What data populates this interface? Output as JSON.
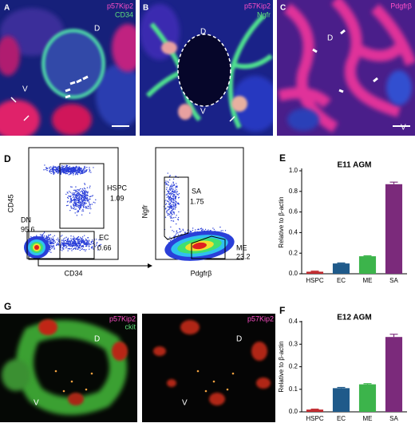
{
  "panels": {
    "A": {
      "letter": "A",
      "markers": [
        "p57Kip2",
        "CD34"
      ],
      "labels": [
        "D",
        "V"
      ]
    },
    "B": {
      "letter": "B",
      "markers": [
        "p57Kip2",
        "Ngfr"
      ],
      "labels": [
        "D",
        "V"
      ]
    },
    "C": {
      "letter": "C",
      "markers": [
        "Pdgfrβ"
      ],
      "labels": [
        "D",
        "V"
      ]
    },
    "D": {
      "letter": "D",
      "plot1": {
        "x_label": "CD34",
        "y_label": "CD45",
        "gates": [
          {
            "name": "HSPC",
            "value": 1.09
          },
          {
            "name": "DN",
            "value": 95.6
          },
          {
            "name": "EC",
            "value": 0.66
          }
        ]
      },
      "plot2": {
        "x_label": "Pdgfrβ",
        "y_label": "Ngfr",
        "gates": [
          {
            "name": "SA",
            "value": 1.75
          },
          {
            "name": "ME",
            "value": 23.2
          }
        ]
      }
    },
    "G": {
      "letter": "G",
      "left": {
        "markers": [
          "p57Kip2",
          "ckit"
        ],
        "labels": [
          "D",
          "V"
        ]
      },
      "right": {
        "markers": [
          "p57Kip2"
        ],
        "labels": [
          "D",
          "V"
        ]
      }
    }
  },
  "chart_data": [
    {
      "type": "bar",
      "letter": "E",
      "title": "E11 AGM",
      "y_label": "Relative to β-actin",
      "categories": [
        "HSPC",
        "EC",
        "ME",
        "SA"
      ],
      "values": [
        0.02,
        0.1,
        0.17,
        0.87
      ],
      "errors": [
        0.005,
        0.005,
        0.005,
        0.02
      ],
      "colors": [
        "#c0282d",
        "#1f5a8a",
        "#3cb44b",
        "#7b2a7b"
      ],
      "ylim": [
        0,
        1.0
      ],
      "yticks": [
        {
          "value": 0,
          "label": "0.0"
        },
        0.2,
        0.4,
        0.6,
        0.8,
        {
          "value": 1.0,
          "label": "1.0"
        }
      ]
    },
    {
      "type": "bar",
      "letter": "F",
      "title": "E12 AGM",
      "y_label": "Relative to β-actin",
      "categories": [
        "HSPC",
        "EC",
        "ME",
        "SA"
      ],
      "values": [
        0.01,
        0.105,
        0.122,
        0.332
      ],
      "errors": [
        0.002,
        0.003,
        0.003,
        0.012
      ],
      "colors": [
        "#c0282d",
        "#1f5a8a",
        "#3cb44b",
        "#7b2a7b"
      ],
      "ylim": [
        0,
        0.4
      ],
      "yticks": [
        {
          "value": 0,
          "label": "0.0"
        },
        0.1,
        0.2,
        0.3,
        0.4
      ]
    }
  ]
}
